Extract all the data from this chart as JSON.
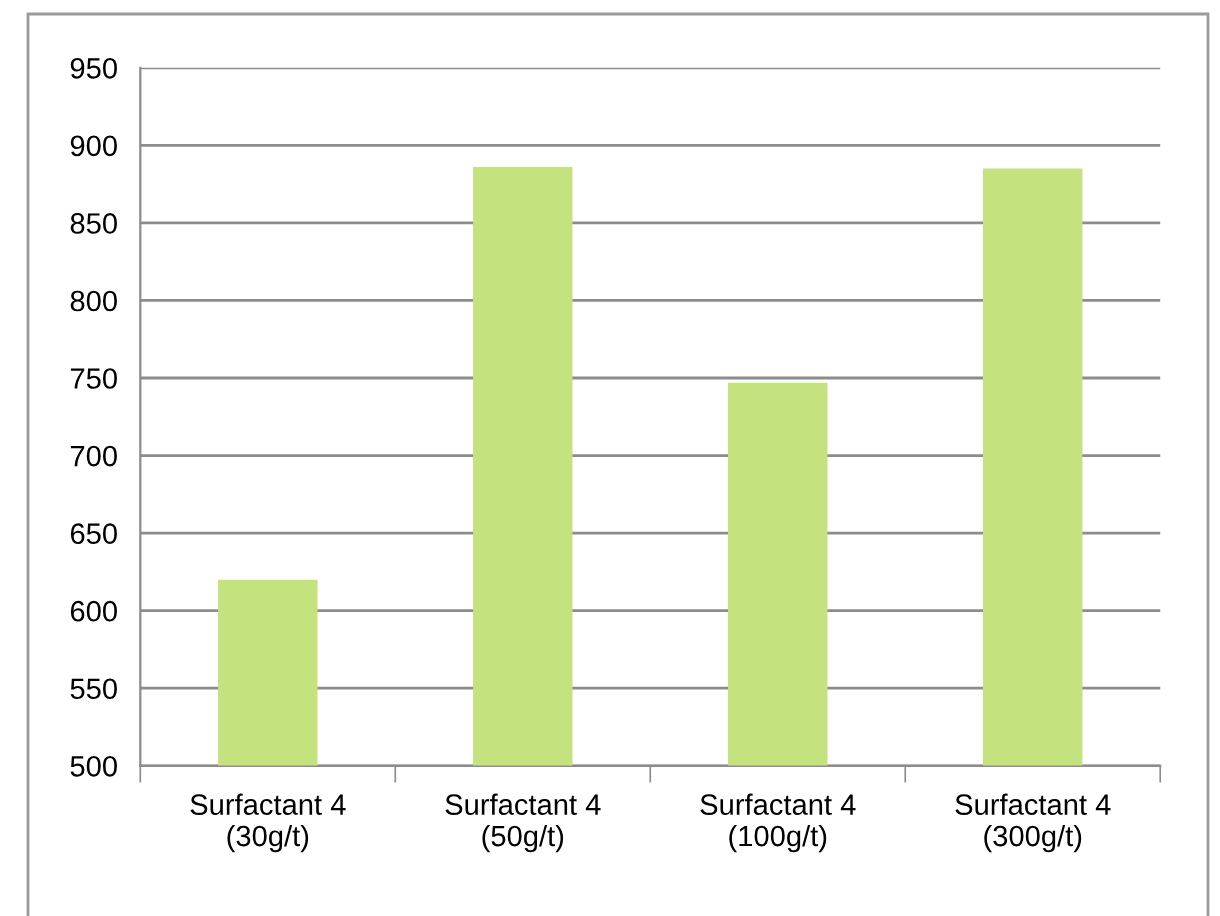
{
  "chart_data": {
    "type": "bar",
    "categories": [
      "Surfactant 4\n(30g/t)",
      "Surfactant 4\n(50g/t)",
      "Surfactant 4\n(100g/t)",
      "Surfactant 4\n(300g/t)"
    ],
    "values": [
      620,
      886,
      747,
      885
    ],
    "color": "#c4e27e",
    "ylim": [
      500,
      950
    ],
    "yticks": [
      500,
      550,
      600,
      650,
      700,
      750,
      800,
      850,
      900,
      950
    ],
    "grid": "y"
  }
}
